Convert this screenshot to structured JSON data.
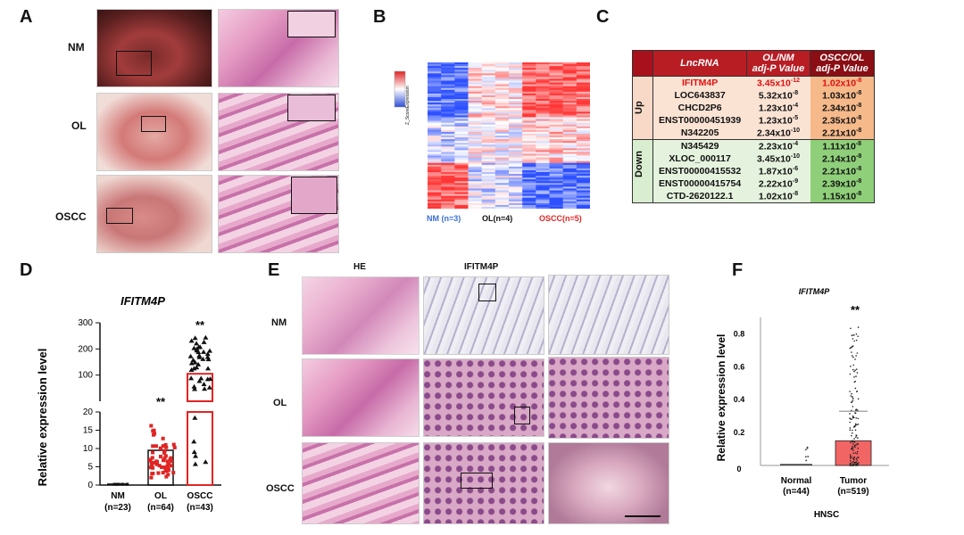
{
  "panels": {
    "A": "A",
    "B": "B",
    "C": "C",
    "D": "D",
    "E": "E",
    "F": "F"
  },
  "panelA": {
    "rows": [
      "NM",
      "OL",
      "OSCC"
    ]
  },
  "panelB": {
    "colorbar_label": "Z_ScoreExpression",
    "groups": [
      {
        "label": "NM (n=3)",
        "color": "#3a6fd8"
      },
      {
        "label": "OL(n=4)",
        "color": "#111111"
      },
      {
        "label": "OSCC(n=5)",
        "color": "#e02424"
      }
    ]
  },
  "panelC": {
    "headers": {
      "lnc": "LncRNA",
      "ol_nm": "OL/NM",
      "ol_nm_sub": "adj-P Value",
      "oscc_ol": "OSCC/OL",
      "oscc_ol_sub": "adj-P Value"
    },
    "groups": [
      {
        "name": "Up",
        "rows": [
          {
            "name": "IFITM4P",
            "v1": "3.45x10",
            "e1": "-12",
            "v2": "1.02x10",
            "e2": "-8",
            "highlight": true
          },
          {
            "name": "LOC643837",
            "v1": "5.32x10",
            "e1": "-8",
            "v2": "1.03x10",
            "e2": "-8"
          },
          {
            "name": "CHCD2P6",
            "v1": "1.23x10",
            "e1": "-4",
            "v2": "2.34x10",
            "e2": "-8"
          },
          {
            "name": "ENST00000451939",
            "v1": "1.23x10",
            "e1": "-5",
            "v2": "2.35x10",
            "e2": "-8"
          },
          {
            "name": "N342205",
            "v1": "2.34x10",
            "e1": "-10",
            "v2": "2.21x10",
            "e2": "-8"
          }
        ]
      },
      {
        "name": "Down",
        "rows": [
          {
            "name": "N345429",
            "v1": "2.23x10",
            "e1": "-4",
            "v2": "1.11x10",
            "e2": "-8"
          },
          {
            "name": "XLOC_000117",
            "v1": "3.45x10",
            "e1": "-10",
            "v2": "2.14x10",
            "e2": "-8"
          },
          {
            "name": "ENST00000415532",
            "v1": "1.87x10",
            "e1": "-6",
            "v2": "2.21x10",
            "e2": "-8"
          },
          {
            "name": "ENST00000415754",
            "v1": "2.22x10",
            "e1": "-9",
            "v2": "2.39x10",
            "e2": "-8"
          },
          {
            "name": "CTD-2620122.1",
            "v1": "1.02x10",
            "e1": "-8",
            "v2": "1.15x10",
            "e2": "-8"
          }
        ]
      }
    ]
  },
  "panelE": {
    "col1": "HE",
    "col2": "IFITM4P",
    "rows": [
      "NM",
      "OL",
      "OSCC"
    ]
  },
  "chart_data": [
    {
      "id": "D",
      "type": "bar",
      "title": "IFITM4P",
      "ylabel": "Relative expression level",
      "categories": [
        "NM",
        "OL",
        "OSCC"
      ],
      "n_labels": [
        "(n=23)",
        "(n=64)",
        "(n=43)"
      ],
      "values": [
        0.2,
        9.5,
        105
      ],
      "significance": [
        "",
        "**",
        "**"
      ],
      "colors": [
        "#111111",
        "#e02424",
        "#e02424"
      ],
      "y_ticks_lower": [
        "0",
        "5",
        "10",
        "15",
        "20"
      ],
      "y_ticks_upper": [
        "100",
        "200",
        "300"
      ],
      "broken_axis": true
    },
    {
      "id": "F",
      "type": "bar",
      "title": "IFITM4P",
      "ylabel": "Relative expression level",
      "xlabel": "HNSC",
      "categories": [
        "Normal",
        "Tumor"
      ],
      "n_labels": [
        "(n=44)",
        "(n=519)"
      ],
      "values": [
        0.0,
        0.15
      ],
      "significance": [
        "",
        "**"
      ],
      "colors": [
        "#555555",
        "#f04a4a"
      ],
      "y_ticks": [
        "0",
        "0.2",
        "0.4",
        "0.6",
        "0.8"
      ]
    }
  ]
}
